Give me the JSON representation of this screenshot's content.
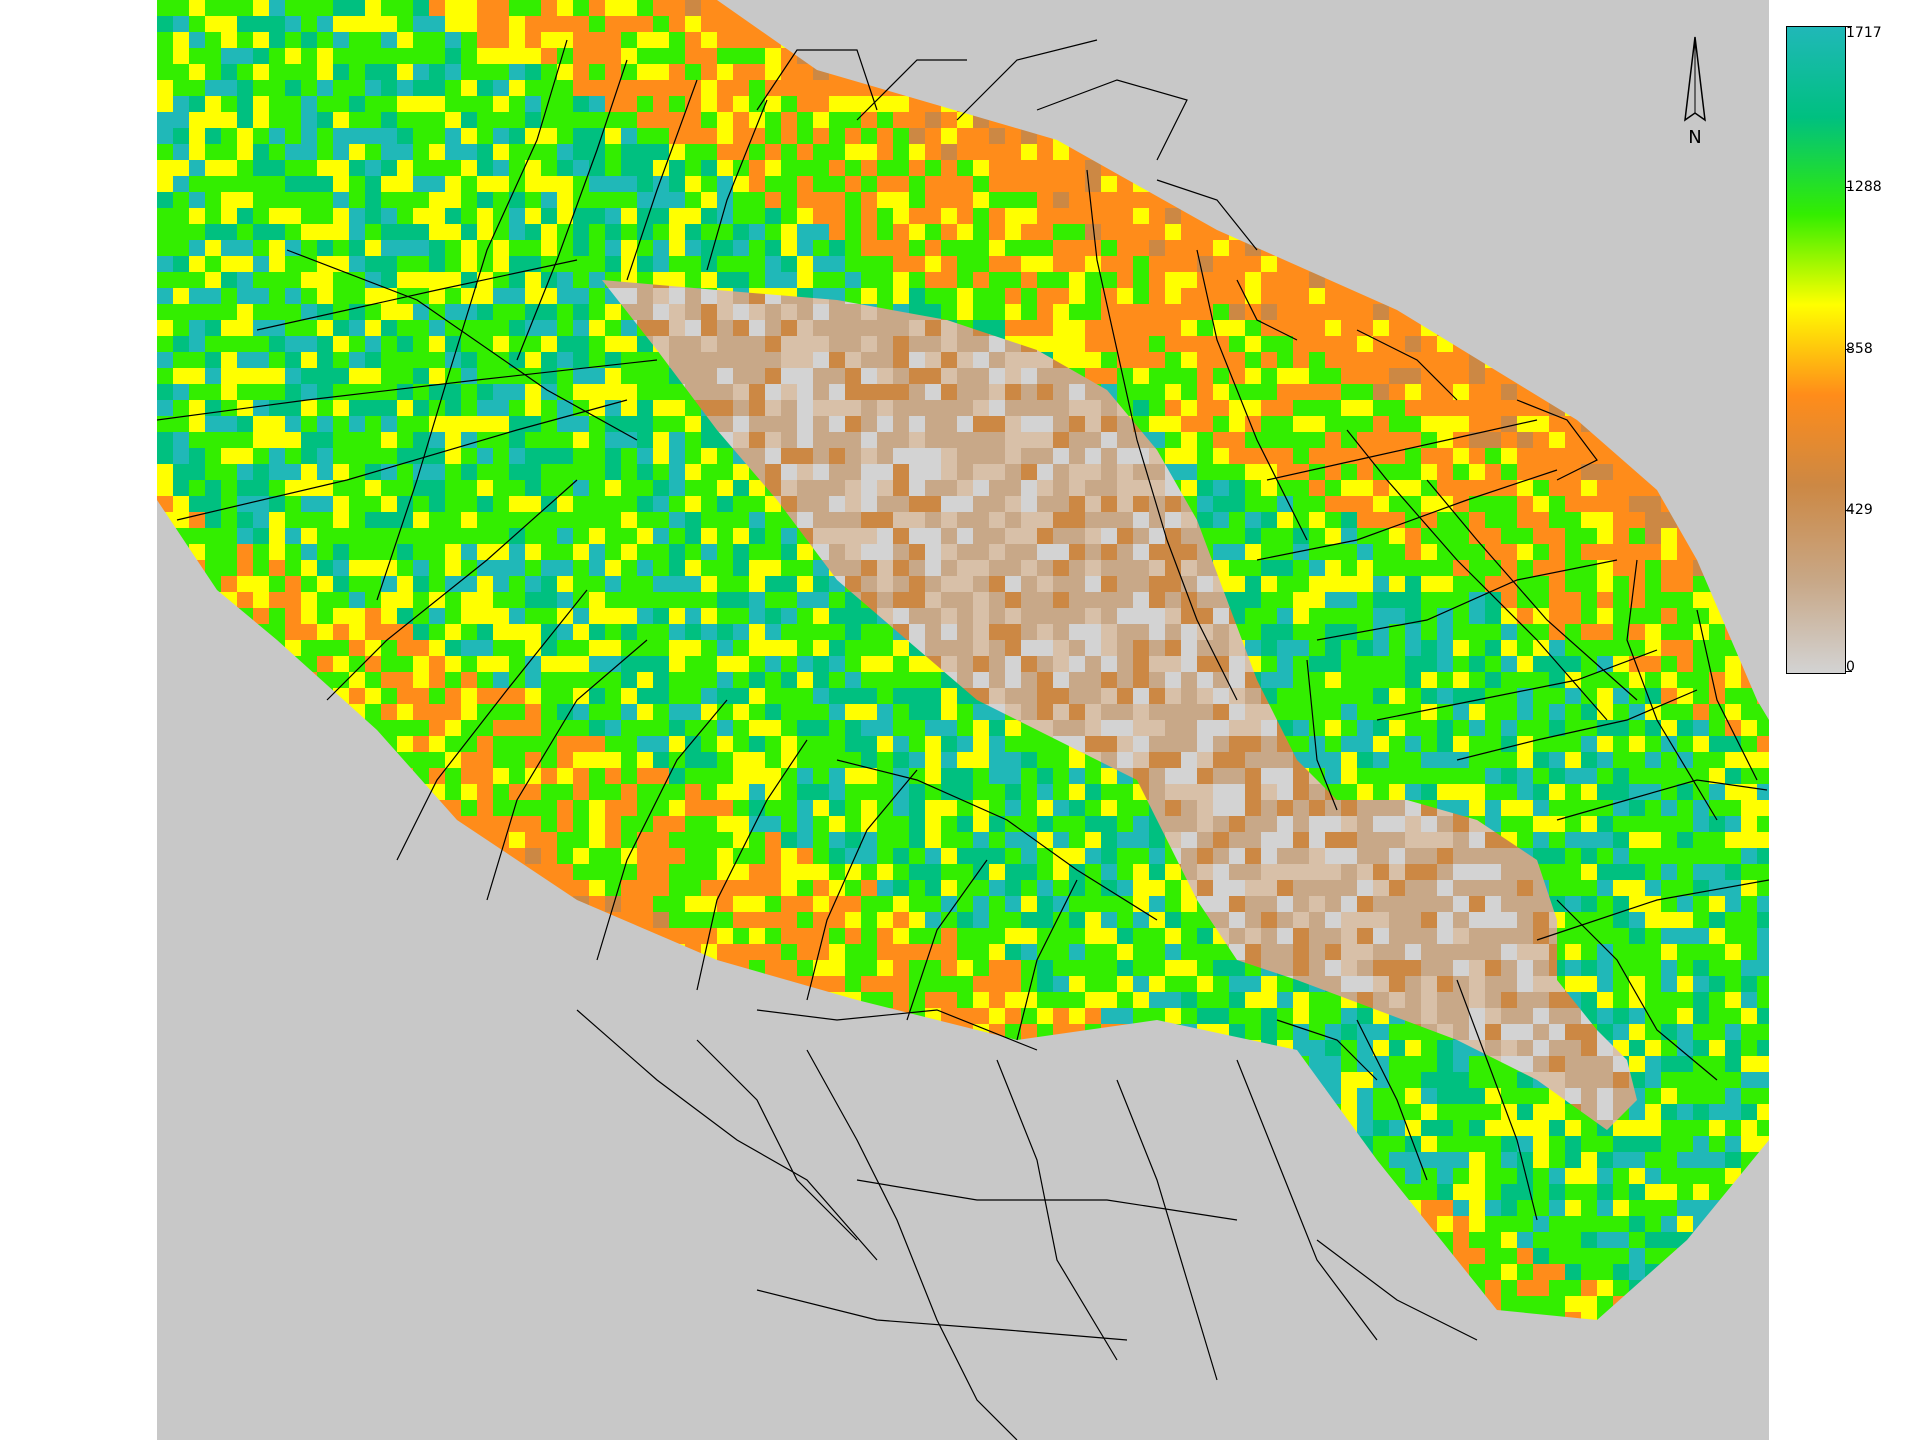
{
  "colors": {
    "background": "#c8c8c8",
    "boundary_line": "#000000",
    "ramp": [
      "#d3d3d3",
      "#c8a888",
      "#cc8844",
      "#ff8c1a",
      "#ffff00",
      "#33ee00",
      "#00c080",
      "#20b8b8"
    ]
  },
  "legend": {
    "min_label": "0",
    "tick_429": "429",
    "tick_858": "858",
    "tick_1288": "1288",
    "max_label": "1717",
    "min_value": 0,
    "max_value": 1717
  },
  "north_arrow": {
    "icon": "north-arrow-icon",
    "letter": "N"
  }
}
